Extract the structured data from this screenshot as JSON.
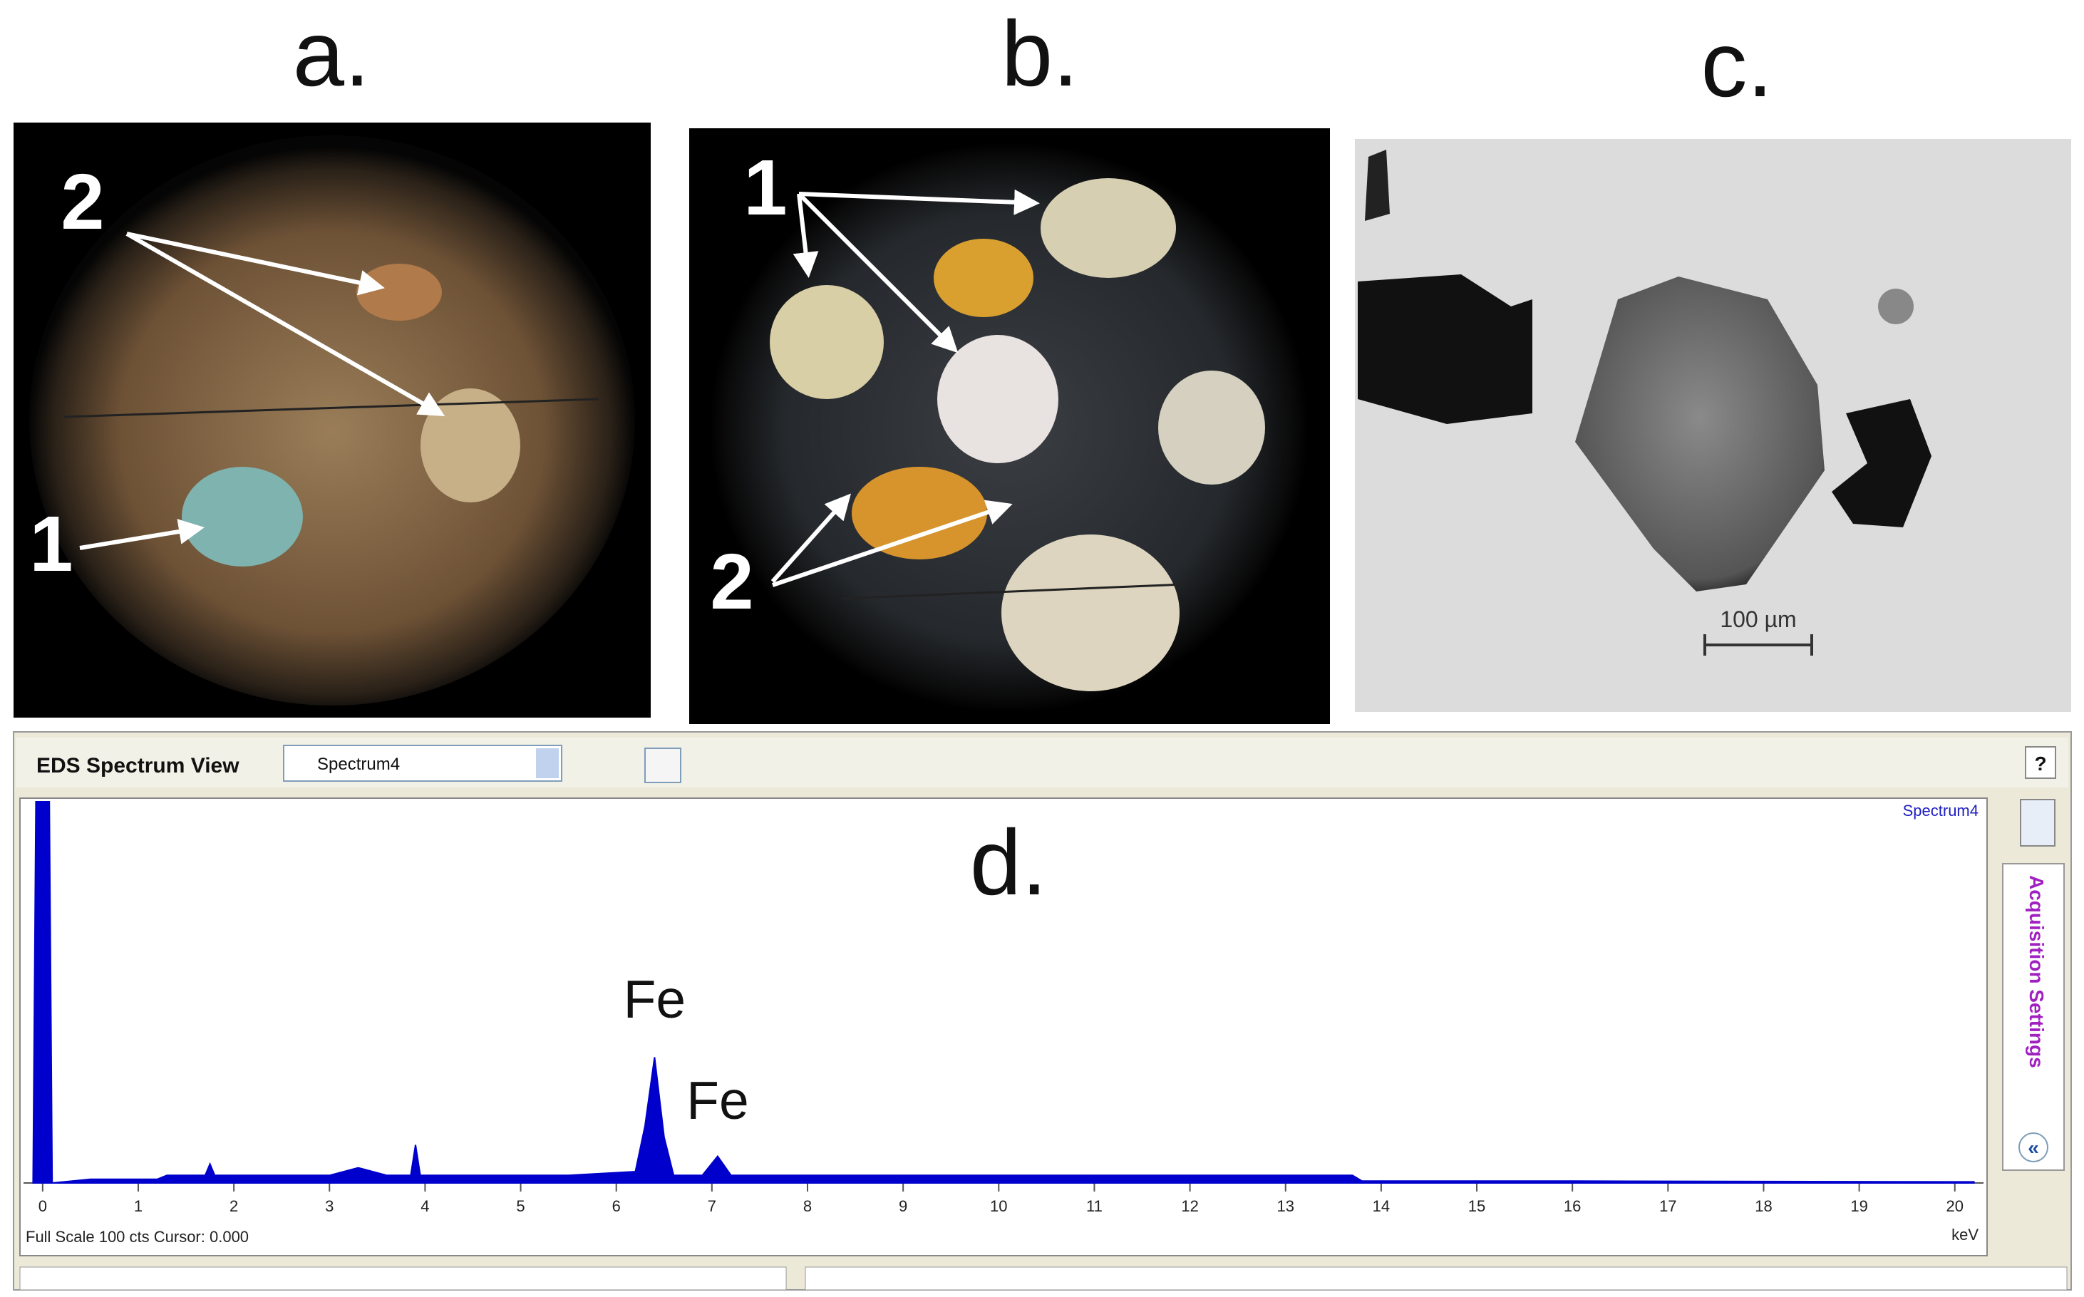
{
  "panels": {
    "a": {
      "label": "a.",
      "annotations": [
        "2",
        "1"
      ]
    },
    "b": {
      "label": "b.",
      "annotations": [
        "1",
        "2"
      ]
    },
    "c": {
      "label": "c.",
      "scale_bar": "100 µm"
    }
  },
  "eds_window": {
    "title": "EDS Spectrum View",
    "dropdown": "Spectrum4",
    "help": "?",
    "side_tab": "Acquisition Settings",
    "side_button": "«",
    "status": "Full Scale 100 cts Cursor: 0.000"
  },
  "chart_data": {
    "type": "area",
    "title": "d.",
    "series_label": "Spectrum4",
    "color": "#0000cc",
    "x": [
      -0.1,
      -0.07,
      0.07,
      0.1,
      0.5,
      1.2,
      1.3,
      1.7,
      1.75,
      1.8,
      2.2,
      3.0,
      3.3,
      3.6,
      3.85,
      3.9,
      3.95,
      4.5,
      5.5,
      6.2,
      6.3,
      6.4,
      6.5,
      6.6,
      6.9,
      7.06,
      7.2,
      7.5,
      9,
      11,
      13.7,
      13.8,
      16,
      20.2
    ],
    "values": [
      0,
      100,
      100,
      0,
      1,
      1,
      2,
      2,
      5,
      2,
      2,
      2,
      4,
      2,
      2,
      10,
      2,
      2,
      2,
      3,
      15,
      33,
      12,
      2,
      2,
      7,
      2,
      2,
      2,
      2,
      2,
      0.5,
      0.5,
      0.3
    ],
    "xlim": [
      -0.2,
      20.3
    ],
    "ylim": [
      0,
      100
    ],
    "xticks": [
      0,
      1,
      2,
      3,
      4,
      5,
      6,
      7,
      8,
      9,
      10,
      11,
      12,
      13,
      14,
      15,
      16,
      17,
      18,
      19,
      20
    ],
    "x_unit": "keV",
    "annotations": [
      {
        "text": "Fe",
        "x": 6.4
      },
      {
        "text": "Fe",
        "x": 7.06
      }
    ]
  }
}
